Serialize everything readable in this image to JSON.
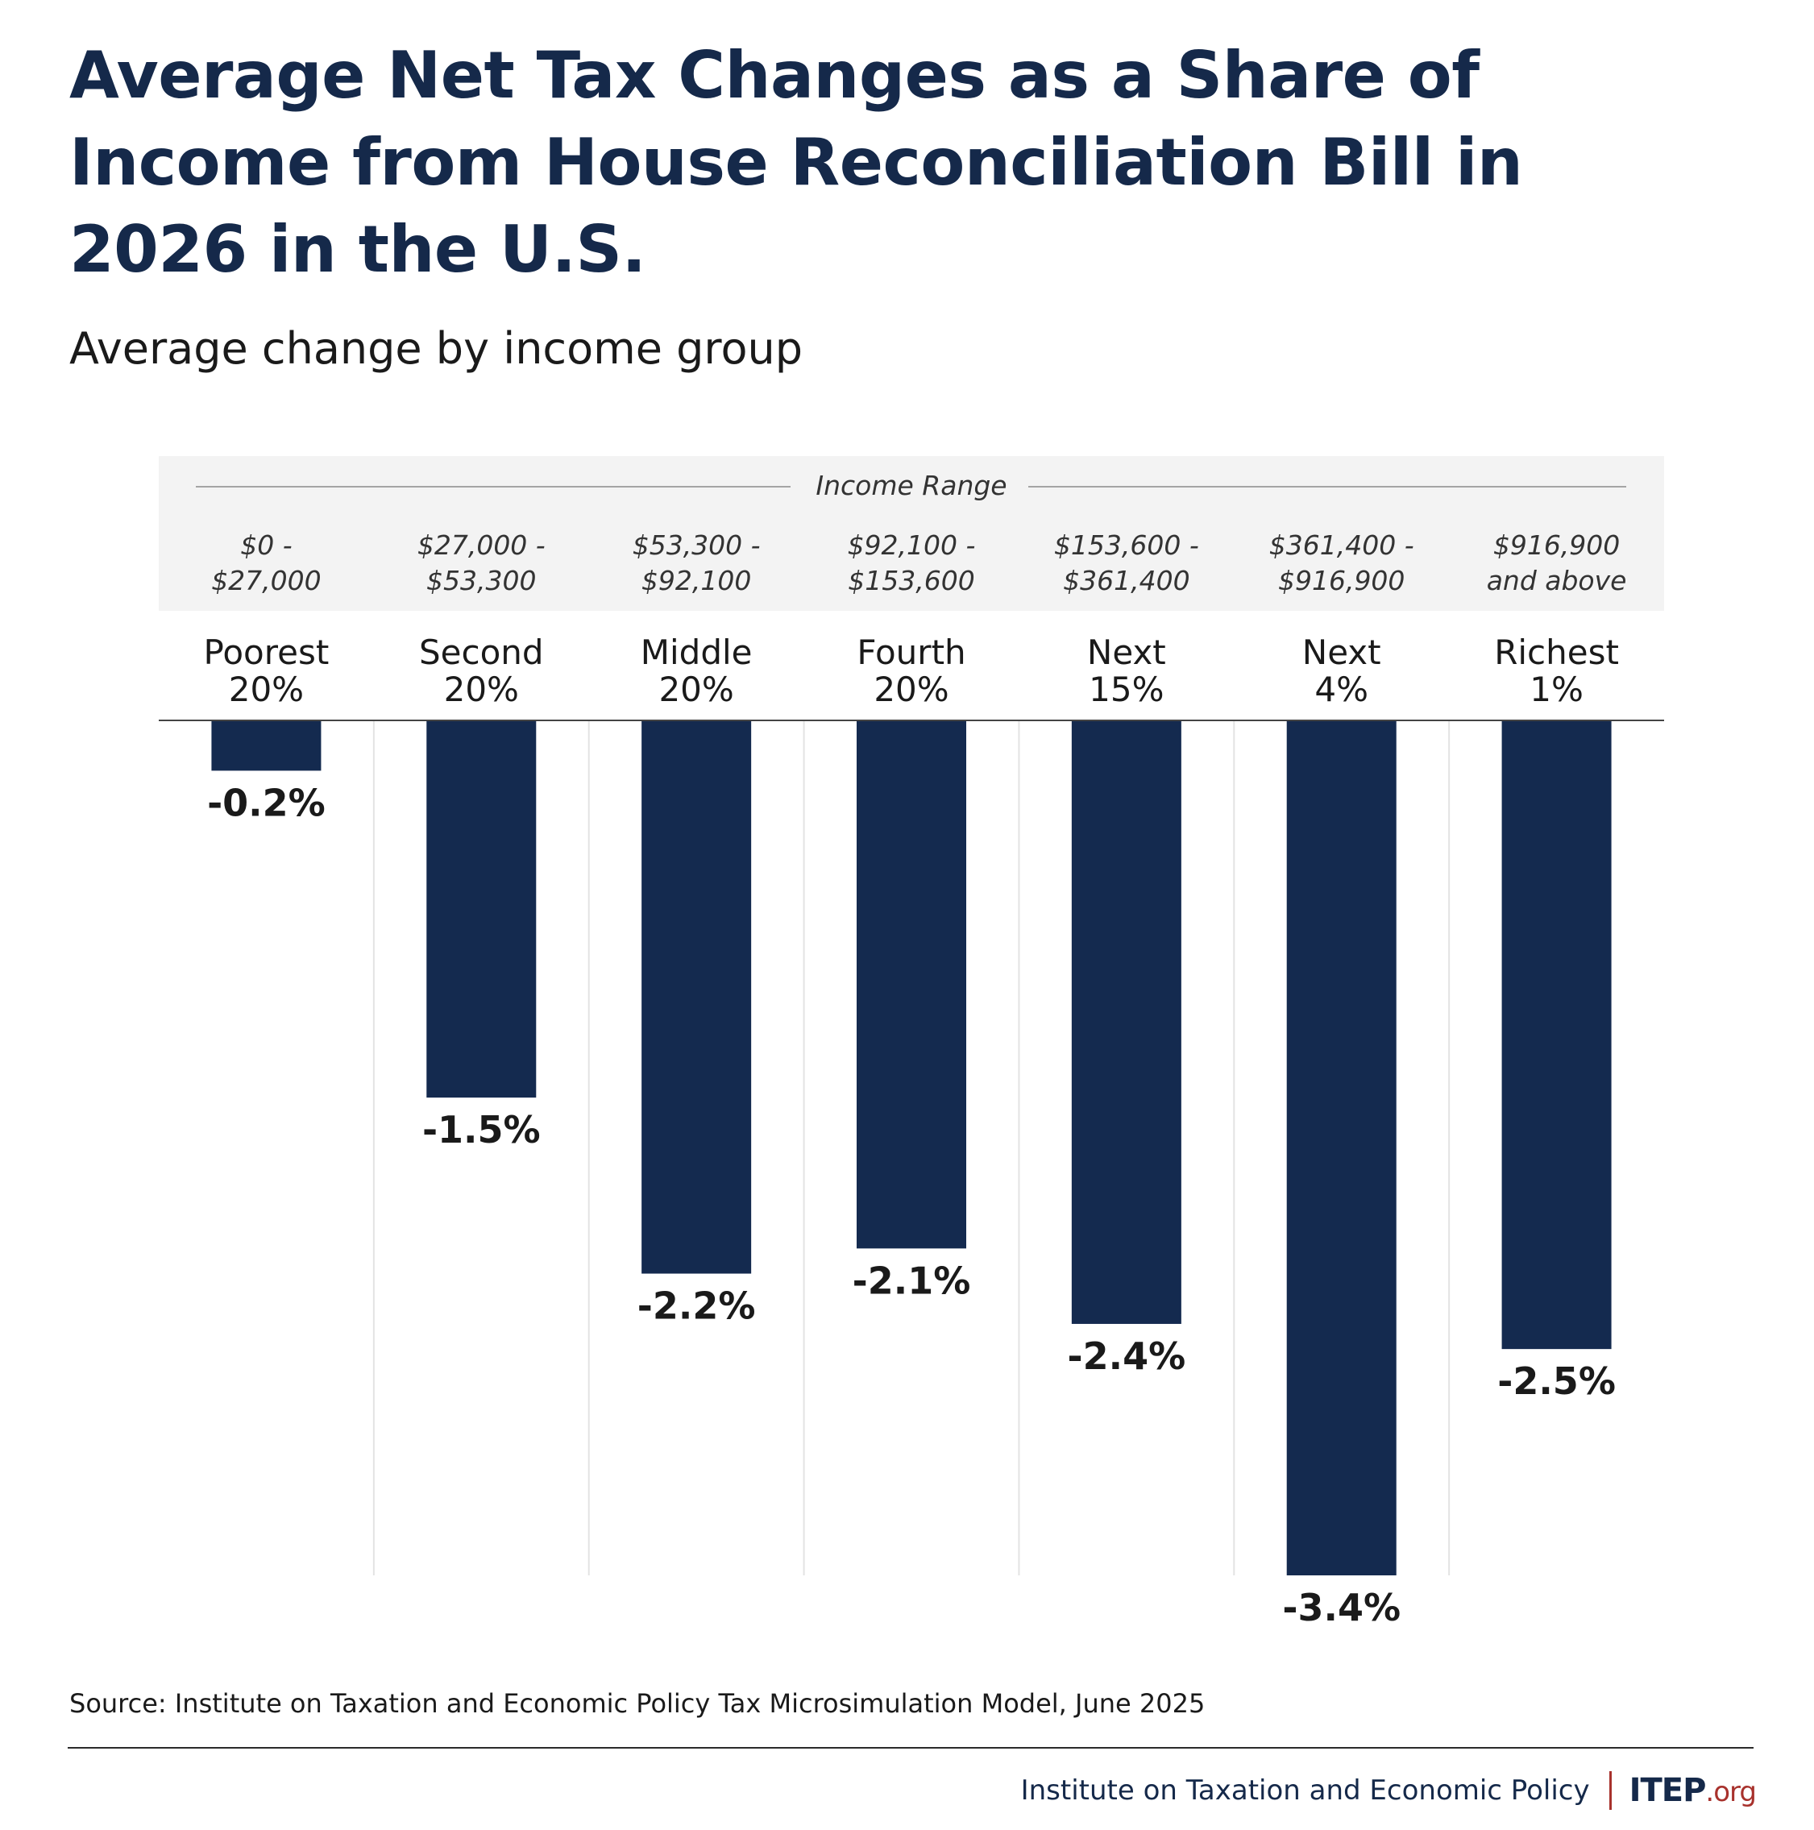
{
  "title": "Average Net Tax Changes as a Share of Income from House Reconciliation Bill in 2026 in the U.S.",
  "subtitle": "Average change by income group",
  "source": "Source: Institute on Taxation and Economic Policy Tax Microsimulation Model, June 2025",
  "footer": {
    "org_name": "Institute on Taxation and Economic Policy",
    "logo_main": "ITEP",
    "logo_tld": ".org"
  },
  "colors": {
    "bar": "#142a4f",
    "title": "#15294a",
    "header_band": "#f3f3f3",
    "gridline": "#e3e3e3",
    "accent": "#a8322d"
  },
  "chart_data": {
    "type": "bar",
    "orientation": "vertical",
    "title": "Average Net Tax Changes as a Share of Income from House Reconciliation Bill in 2026 in the U.S.",
    "subtitle": "Average change by income group",
    "header_label": "Income Range",
    "categories": [
      [
        "Poorest",
        "20%"
      ],
      [
        "Second",
        "20%"
      ],
      [
        "Middle",
        "20%"
      ],
      [
        "Fourth",
        "20%"
      ],
      [
        "Next",
        "15%"
      ],
      [
        "Next",
        "4%"
      ],
      [
        "Richest",
        "1%"
      ]
    ],
    "income_ranges": [
      [
        "$0 -",
        "$27,000"
      ],
      [
        "$27,000 -",
        "$53,300"
      ],
      [
        "$53,300 -",
        "$92,100"
      ],
      [
        "$92,100 -",
        "$153,600"
      ],
      [
        "$153,600 -",
        "$361,400"
      ],
      [
        "$361,400 -",
        "$916,900"
      ],
      [
        "$916,900",
        "and above"
      ]
    ],
    "values": [
      -0.2,
      -1.5,
      -2.2,
      -2.1,
      -2.4,
      -3.4,
      -2.5
    ],
    "value_labels": [
      "-0.2%",
      "-1.5%",
      "-2.2%",
      "-2.1%",
      "-2.4%",
      "-3.4%",
      "-2.5%"
    ],
    "unit": "%",
    "ylim": [
      -3.4,
      0
    ],
    "grid": false,
    "legend": "none"
  }
}
